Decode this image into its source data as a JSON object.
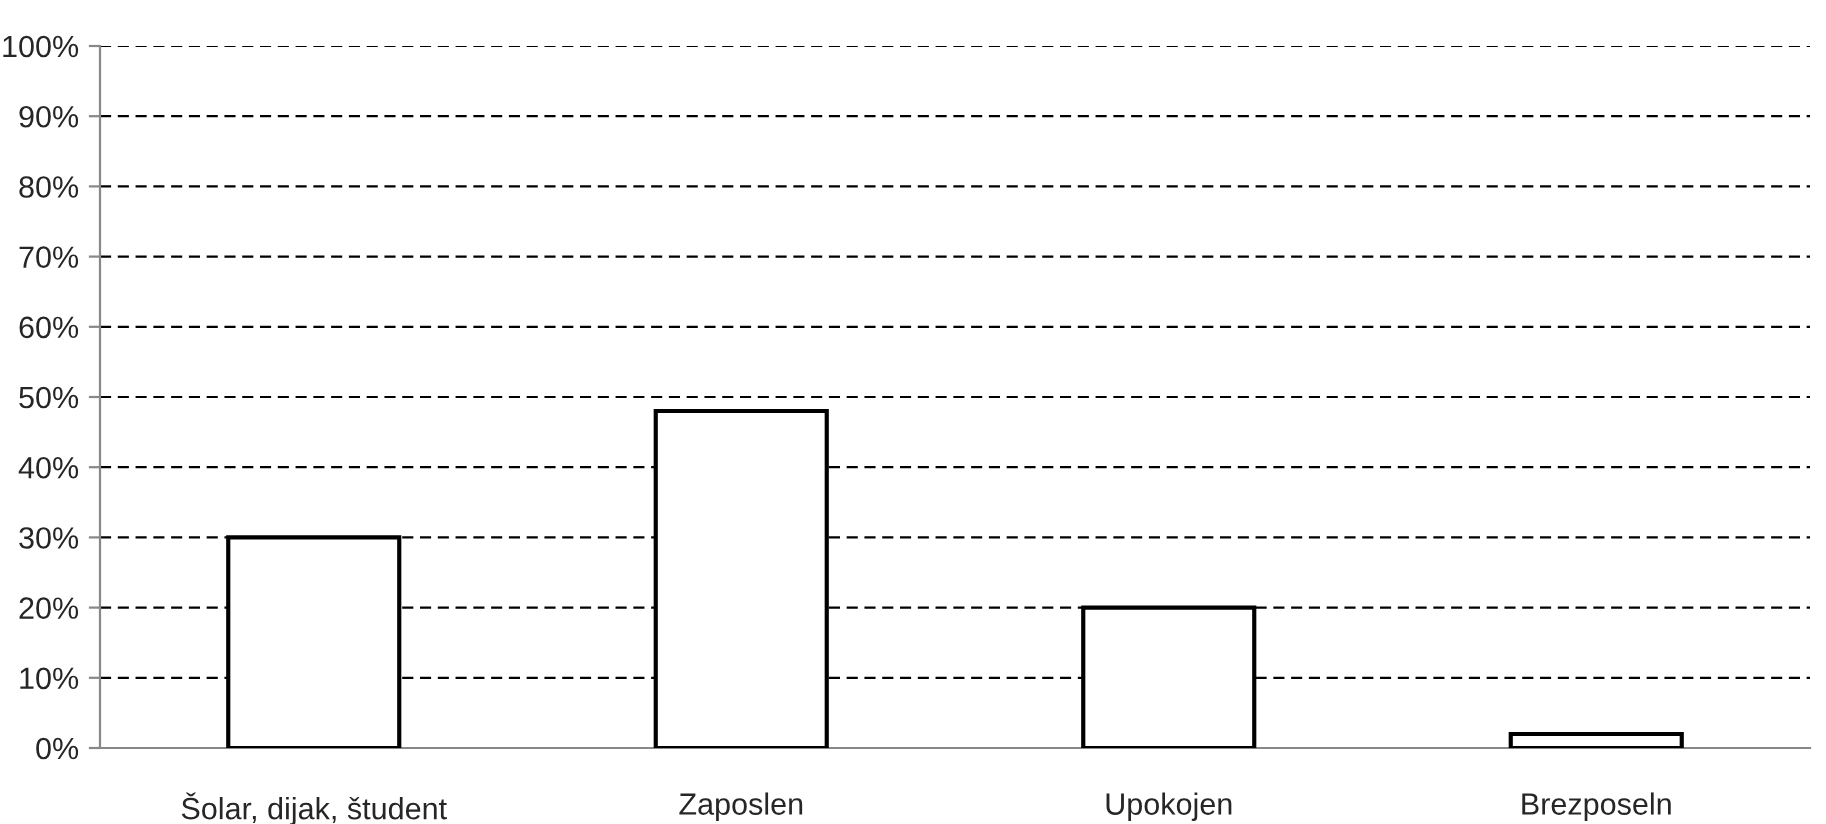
{
  "chart_data": {
    "type": "bar",
    "categories": [
      "Šolar, dijak, študent",
      "Zaposlen",
      "Upokojen",
      "Brezposeln"
    ],
    "values": [
      30,
      48,
      20,
      2
    ],
    "color": "#ffffff",
    "ylim": [
      0,
      100
    ],
    "yticks": [
      {
        "value": 0,
        "label": "0%"
      },
      {
        "value": 10,
        "label": "10%"
      },
      {
        "value": 20,
        "label": "20%"
      },
      {
        "value": 30,
        "label": "30%"
      },
      {
        "value": 40,
        "label": "40%"
      },
      {
        "value": 50,
        "label": "50%"
      },
      {
        "value": 60,
        "label": "60%"
      },
      {
        "value": 70,
        "label": "70%"
      },
      {
        "value": 80,
        "label": "80%"
      },
      {
        "value": 90,
        "label": "90%"
      },
      {
        "value": 100,
        "label": "100%"
      }
    ],
    "grid": "y"
  }
}
